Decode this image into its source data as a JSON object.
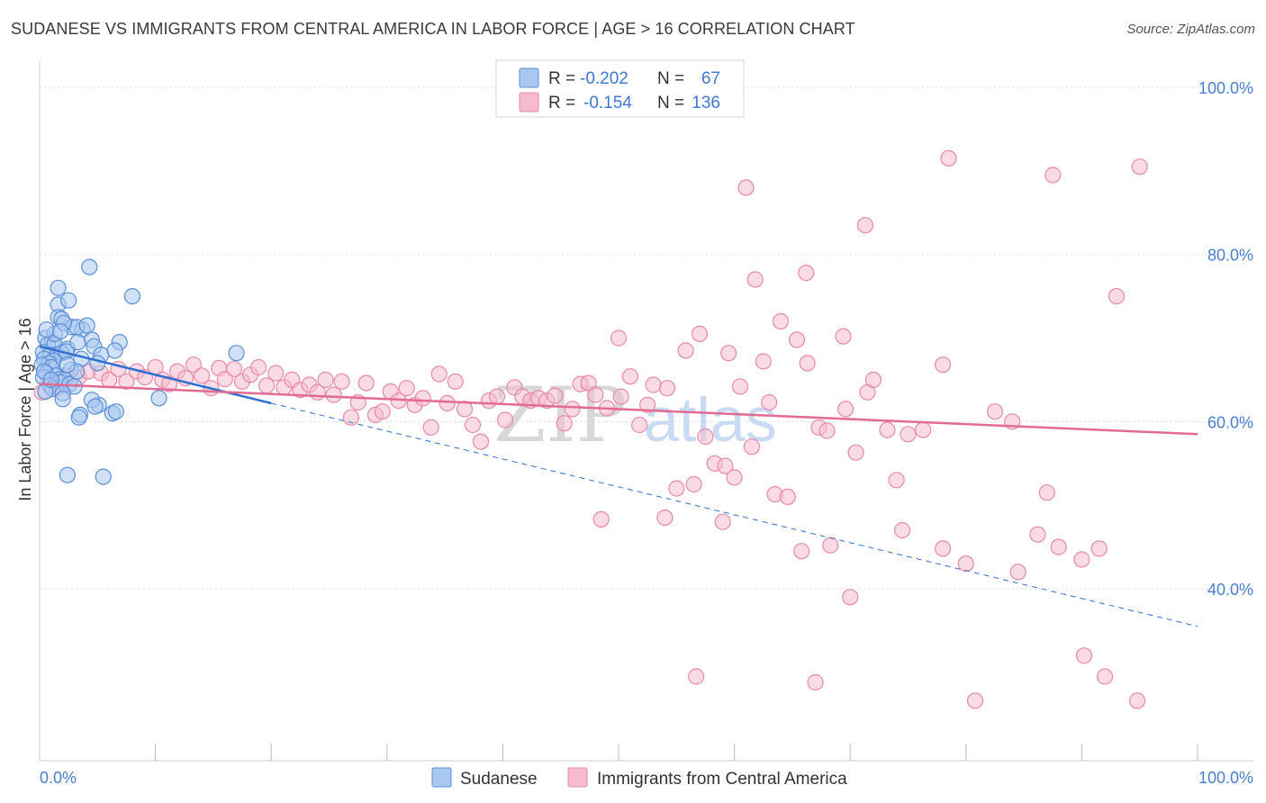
{
  "title": "SUDANESE VS IMMIGRANTS FROM CENTRAL AMERICA IN LABOR FORCE | AGE > 16 CORRELATION CHART",
  "source": "Source: ZipAtlas.com",
  "watermark": {
    "zip": "ZIP",
    "atlas": "atlas"
  },
  "colors": {
    "blue_fill": "#a9c8f0",
    "blue_stroke": "#5b8fd8",
    "blue_line": "#2f6fd0",
    "pink_fill": "#f6bccd",
    "pink_stroke": "#e88aa6",
    "pink_line": "#e26a93",
    "label": "#4a7fd0",
    "grid": "#dddddd"
  },
  "stats_legend": [
    {
      "r_label": "R =",
      "r_value": "-0.202",
      "n_label": "N =",
      "n_value": "67",
      "color": "blue"
    },
    {
      "r_label": "R =",
      "r_value": "-0.154",
      "n_label": "N =",
      "n_value": "136",
      "color": "pink"
    }
  ],
  "chart_data": {
    "type": "scatter",
    "title": "SUDANESE VS IMMIGRANTS FROM CENTRAL AMERICA IN LABOR FORCE | AGE > 16 CORRELATION CHART",
    "xlabel": "",
    "ylabel": "In Labor Force | Age > 16",
    "xlim": [
      0,
      100
    ],
    "ylim": [
      18,
      100
    ],
    "x_tick_labels": [
      "0.0%",
      "100.0%"
    ],
    "y_ticks": [
      40,
      60,
      80,
      100
    ],
    "y_tick_labels": [
      "40.0%",
      "60.0%",
      "80.0%",
      "100.0%"
    ],
    "grid": true,
    "legend_position": "bottom-center",
    "series": [
      {
        "name": "Sudanese",
        "color": "blue",
        "trend": {
          "x0": 0,
          "y0": 69.0,
          "x1": 20,
          "y1": 62.2,
          "dashed_to_x": 100,
          "dashed_to_y": 35.5
        },
        "points": [
          [
            4.3,
            78.5
          ],
          [
            1.6,
            76.0
          ],
          [
            1.6,
            74.0
          ],
          [
            2.5,
            74.5
          ],
          [
            8.0,
            75.0
          ],
          [
            1.6,
            72.5
          ],
          [
            1.9,
            72.3
          ],
          [
            2.8,
            71.3
          ],
          [
            3.7,
            71.0
          ],
          [
            3.2,
            71.3
          ],
          [
            0.5,
            70.0
          ],
          [
            1.1,
            69.5
          ],
          [
            0.7,
            69.2
          ],
          [
            1.3,
            69.3
          ],
          [
            2.4,
            68.7
          ],
          [
            0.3,
            68.3
          ],
          [
            0.9,
            68.0
          ],
          [
            1.5,
            68.0
          ],
          [
            1.9,
            68.2
          ],
          [
            2.3,
            68.4
          ],
          [
            0.4,
            67.5
          ],
          [
            1.2,
            67.3
          ],
          [
            0.8,
            67.0
          ],
          [
            0.2,
            66.8
          ],
          [
            1.0,
            66.5
          ],
          [
            2.7,
            66.2
          ],
          [
            0.6,
            65.8
          ],
          [
            1.4,
            65.5
          ],
          [
            0.3,
            65.3
          ],
          [
            1.8,
            65.1
          ],
          [
            2.2,
            65.0
          ],
          [
            1.7,
            64.7
          ],
          [
            2.6,
            64.5
          ],
          [
            0.9,
            64.3
          ],
          [
            3.0,
            64.2
          ],
          [
            1.1,
            63.9
          ],
          [
            0.5,
            63.6
          ],
          [
            2.0,
            63.4
          ],
          [
            4.5,
            69.8
          ],
          [
            4.7,
            69.0
          ],
          [
            6.9,
            69.5
          ],
          [
            4.1,
            71.5
          ],
          [
            5.3,
            68.0
          ],
          [
            6.5,
            68.5
          ],
          [
            3.6,
            67.5
          ],
          [
            3.2,
            66.0
          ],
          [
            2.4,
            66.8
          ],
          [
            5.0,
            67.0
          ],
          [
            1.3,
            70.5
          ],
          [
            2.1,
            71.8
          ],
          [
            0.6,
            71.0
          ],
          [
            1.8,
            70.8
          ],
          [
            3.3,
            69.5
          ],
          [
            0.4,
            66.0
          ],
          [
            1.0,
            65.0
          ],
          [
            5.1,
            62.0
          ],
          [
            4.5,
            62.6
          ],
          [
            4.8,
            61.8
          ],
          [
            3.5,
            60.8
          ],
          [
            3.4,
            60.5
          ],
          [
            6.3,
            61.0
          ],
          [
            6.6,
            61.2
          ],
          [
            2.0,
            62.7
          ],
          [
            10.3,
            62.8
          ],
          [
            17.0,
            68.2
          ],
          [
            2.4,
            53.6
          ],
          [
            5.5,
            53.4
          ]
        ]
      },
      {
        "name": "Immigrants from Central America",
        "color": "pink",
        "trend": {
          "x0": 0,
          "y0": 64.5,
          "x1": 100,
          "y1": 58.5
        },
        "points": [
          [
            0.2,
            63.5
          ],
          [
            0.8,
            65.0
          ],
          [
            1.5,
            64.0
          ],
          [
            2.3,
            65.5
          ],
          [
            3.4,
            65.3
          ],
          [
            4.2,
            66.0
          ],
          [
            5.3,
            65.8
          ],
          [
            6.0,
            65.0
          ],
          [
            6.8,
            66.3
          ],
          [
            7.5,
            64.8
          ],
          [
            8.4,
            66.0
          ],
          [
            9.1,
            65.3
          ],
          [
            10.0,
            66.5
          ],
          [
            10.6,
            65.0
          ],
          [
            11.2,
            64.5
          ],
          [
            11.9,
            66.0
          ],
          [
            12.6,
            65.2
          ],
          [
            13.3,
            66.8
          ],
          [
            14.0,
            65.5
          ],
          [
            14.8,
            64.0
          ],
          [
            15.5,
            66.4
          ],
          [
            16.0,
            65.1
          ],
          [
            16.8,
            66.3
          ],
          [
            17.5,
            64.8
          ],
          [
            18.2,
            65.6
          ],
          [
            18.9,
            66.5
          ],
          [
            19.6,
            64.3
          ],
          [
            20.4,
            65.8
          ],
          [
            21.1,
            64.1
          ],
          [
            21.8,
            65.0
          ],
          [
            22.5,
            63.8
          ],
          [
            23.3,
            64.4
          ],
          [
            24.0,
            63.5
          ],
          [
            24.7,
            65.0
          ],
          [
            25.4,
            63.2
          ],
          [
            26.1,
            64.8
          ],
          [
            26.9,
            60.5
          ],
          [
            27.5,
            62.3
          ],
          [
            28.2,
            64.6
          ],
          [
            29.0,
            60.8
          ],
          [
            29.6,
            61.2
          ],
          [
            30.3,
            63.6
          ],
          [
            31.0,
            62.5
          ],
          [
            31.7,
            64.0
          ],
          [
            32.4,
            62.0
          ],
          [
            33.1,
            62.8
          ],
          [
            33.8,
            59.3
          ],
          [
            34.5,
            65.7
          ],
          [
            35.2,
            62.2
          ],
          [
            35.9,
            64.8
          ],
          [
            36.7,
            61.5
          ],
          [
            37.4,
            59.6
          ],
          [
            38.1,
            57.6
          ],
          [
            38.8,
            62.5
          ],
          [
            39.5,
            63.0
          ],
          [
            40.2,
            60.2
          ],
          [
            41.0,
            64.1
          ],
          [
            41.7,
            63.0
          ],
          [
            42.4,
            62.5
          ],
          [
            43.1,
            62.8
          ],
          [
            43.8,
            62.5
          ],
          [
            44.5,
            63.1
          ],
          [
            45.3,
            59.8
          ],
          [
            46.0,
            61.5
          ],
          [
            46.7,
            64.5
          ],
          [
            47.4,
            64.6
          ],
          [
            48.0,
            63.2
          ],
          [
            49.0,
            61.6
          ],
          [
            50.2,
            63.0
          ],
          [
            51.0,
            65.4
          ],
          [
            51.8,
            59.6
          ],
          [
            53.0,
            64.4
          ],
          [
            54.2,
            64.0
          ],
          [
            55.0,
            52.0
          ],
          [
            56.5,
            52.5
          ],
          [
            57.5,
            58.2
          ],
          [
            58.3,
            55.0
          ],
          [
            59.2,
            54.7
          ],
          [
            60.0,
            53.3
          ],
          [
            61.5,
            57.0
          ],
          [
            62.5,
            67.2
          ],
          [
            63.5,
            51.3
          ],
          [
            64.6,
            51.0
          ],
          [
            65.4,
            69.8
          ],
          [
            66.3,
            67.0
          ],
          [
            67.3,
            59.3
          ],
          [
            68.0,
            58.9
          ],
          [
            69.6,
            61.5
          ],
          [
            70.5,
            56.3
          ],
          [
            71.5,
            63.5
          ],
          [
            73.2,
            59.0
          ],
          [
            75.0,
            58.5
          ],
          [
            76.3,
            59.0
          ],
          [
            70.0,
            39.0
          ],
          [
            74.0,
            53.0
          ],
          [
            50.0,
            70.0
          ],
          [
            52.5,
            62.0
          ],
          [
            55.8,
            68.5
          ],
          [
            60.5,
            64.2
          ],
          [
            64.0,
            72.0
          ],
          [
            66.2,
            77.8
          ],
          [
            69.4,
            70.2
          ],
          [
            72.0,
            65.0
          ],
          [
            78.0,
            66.8
          ],
          [
            82.5,
            61.2
          ],
          [
            84.0,
            60.0
          ],
          [
            87.0,
            51.5
          ],
          [
            88.0,
            45.0
          ],
          [
            90.0,
            43.5
          ],
          [
            91.5,
            44.8
          ],
          [
            93.0,
            75.0
          ],
          [
            61.8,
            77.0
          ],
          [
            57.0,
            70.5
          ],
          [
            59.5,
            68.2
          ],
          [
            63.0,
            62.3
          ],
          [
            61.0,
            88.0
          ],
          [
            71.3,
            83.5
          ],
          [
            78.5,
            91.5
          ],
          [
            87.5,
            89.5
          ],
          [
            95.0,
            90.5
          ],
          [
            48.5,
            48.3
          ],
          [
            54.0,
            48.5
          ],
          [
            59.0,
            48.0
          ],
          [
            65.8,
            44.5
          ],
          [
            68.3,
            45.2
          ],
          [
            74.5,
            47.0
          ],
          [
            78.0,
            44.8
          ],
          [
            80.0,
            43.0
          ],
          [
            84.5,
            42.0
          ],
          [
            86.2,
            46.5
          ],
          [
            90.2,
            32.0
          ],
          [
            92.0,
            29.5
          ],
          [
            94.8,
            26.6
          ],
          [
            80.8,
            26.6
          ],
          [
            56.7,
            29.5
          ],
          [
            67.0,
            28.8
          ]
        ]
      }
    ]
  }
}
